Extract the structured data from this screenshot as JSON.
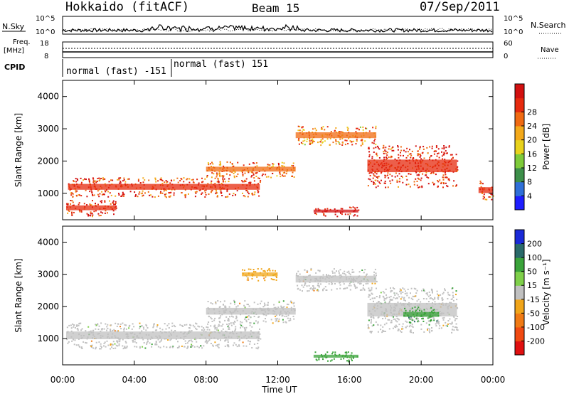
{
  "header": {
    "station": "Hokkaido (fitACF)",
    "beam": "Beam 15",
    "date": "07/Sep/2011"
  },
  "summary_panels": {
    "nsky_label": "N.Sky",
    "nsky_ticks": [
      "10^5",
      "10^0"
    ],
    "nsearch_label": "N.Search",
    "nsearch_ticks": [
      "10^5",
      "10^0"
    ],
    "freq_label_1": "Freq.",
    "freq_label_2": "[MHz]",
    "freq_ticks": [
      "18",
      "8"
    ],
    "nave_label": "Nave",
    "nave_ticks": [
      "60",
      "0"
    ],
    "cpid_label": "CPID",
    "cpid_segments": [
      {
        "label": "normal (fast) -151",
        "start_hour": 0,
        "end_hour": 6
      },
      {
        "label": "normal (fast) 151",
        "start_hour": 6,
        "end_hour": 24
      }
    ]
  },
  "chart_data": [
    {
      "type": "heatmap",
      "title": "",
      "xlabel": "Time UT",
      "ylabel": "Slant Range [km]",
      "xlim": [
        0,
        24
      ],
      "ylim": [
        180,
        4500
      ],
      "x_ticks": [
        "00:00",
        "04:00",
        "08:00",
        "12:00",
        "16:00",
        "20:00",
        "00:00"
      ],
      "y_ticks": [
        "1000",
        "2000",
        "3000",
        "4000"
      ],
      "y_tick_values": [
        1000,
        2000,
        3000,
        4000
      ],
      "colorbar": {
        "label": "Power [dB]",
        "ticks": [
          "4",
          "8",
          "12",
          "16",
          "20",
          "24",
          "28"
        ],
        "range": [
          0,
          30
        ],
        "colors": [
          "#1e1eff",
          "#2f6fd8",
          "#3d8f4a",
          "#7ecb3a",
          "#e8d21c",
          "#f3a91a",
          "#f06a12",
          "#e62a0e",
          "#d21010"
        ]
      },
      "echo_bands": [
        {
          "range_km": [
            300,
            800
          ],
          "from_hour": 0.2,
          "to_hour": 3.0,
          "value": 26
        },
        {
          "range_km": [
            900,
            1500
          ],
          "from_hour": 0.3,
          "to_hour": 11.0,
          "value": 24
        },
        {
          "range_km": [
            1500,
            2000
          ],
          "from_hour": 8.0,
          "to_hour": 13.0,
          "value": 22
        },
        {
          "range_km": [
            2500,
            3100
          ],
          "from_hour": 13.0,
          "to_hour": 17.5,
          "value": 20
        },
        {
          "range_km": [
            1200,
            2500
          ],
          "from_hour": 17.0,
          "to_hour": 22.0,
          "value": 26
        },
        {
          "range_km": [
            800,
            1400
          ],
          "from_hour": 23.2,
          "to_hour": 24.0,
          "value": 24
        },
        {
          "range_km": [
            300,
            600
          ],
          "from_hour": 14.0,
          "to_hour": 16.5,
          "value": 28
        }
      ]
    },
    {
      "type": "heatmap",
      "title": "",
      "xlabel": "Time UT",
      "ylabel": "Slant Range [km]",
      "xlim": [
        0,
        24
      ],
      "ylim": [
        180,
        4500
      ],
      "x_ticks": [
        "00:00",
        "04:00",
        "08:00",
        "12:00",
        "16:00",
        "20:00",
        "00:00"
      ],
      "y_ticks": [
        "1000",
        "2000",
        "3000",
        "4000"
      ],
      "y_tick_values": [
        1000,
        2000,
        3000,
        4000
      ],
      "colorbar": {
        "label": "Velocity [m s⁻¹]",
        "ticks": [
          "200",
          "100",
          "50",
          "15",
          "-15",
          "-50",
          "-100",
          "-200"
        ],
        "colors": [
          "#1a2ad8",
          "#2a6a6a",
          "#3aa33a",
          "#7fd04a",
          "#c0c0c0",
          "#f0a51a",
          "#f07a14",
          "#f04a12",
          "#e01010"
        ]
      },
      "echo_bands": [
        {
          "range_km": [
            700,
            1500
          ],
          "from_hour": 0.2,
          "to_hour": 11.0,
          "value": 0
        },
        {
          "range_km": [
            1500,
            2200
          ],
          "from_hour": 8.0,
          "to_hour": 13.0,
          "value": 0
        },
        {
          "range_km": [
            2500,
            3200
          ],
          "from_hour": 13.0,
          "to_hour": 17.5,
          "value": 0
        },
        {
          "range_km": [
            1200,
            2600
          ],
          "from_hour": 17.0,
          "to_hour": 22.0,
          "value": 0
        },
        {
          "range_km": [
            1500,
            2000
          ],
          "from_hour": 19.0,
          "to_hour": 21.0,
          "value": 70
        },
        {
          "range_km": [
            300,
            600
          ],
          "from_hour": 14.0,
          "to_hour": 16.5,
          "value": 60
        },
        {
          "range_km": [
            2800,
            3200
          ],
          "from_hour": 10.0,
          "to_hour": 12.0,
          "value": -30
        }
      ]
    }
  ]
}
